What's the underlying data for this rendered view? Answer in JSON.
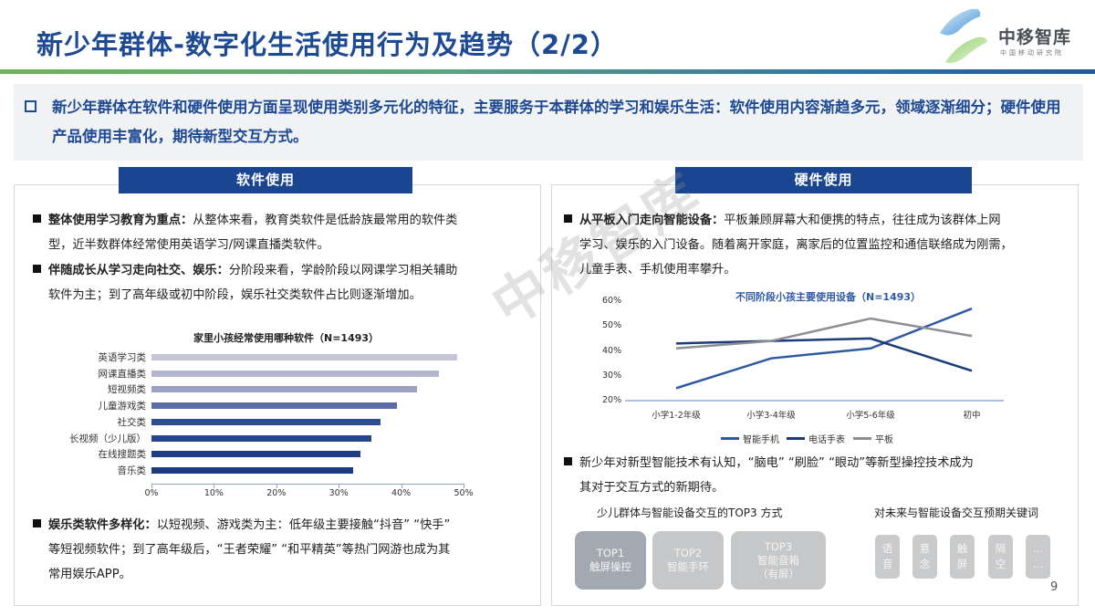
{
  "header": {
    "title": "新少年群体-数字化生活使用行为及趋势（2/2）",
    "logo": {
      "name": "中移智库",
      "subtitle": "中国移动研究院"
    }
  },
  "summary": {
    "text": "新少年群体在软件和硬件使用方面呈现使用类别多元化的特征，主要服务于本群体的学习和娱乐生活：软件使用内容渐趋多元，领域逐渐细分；硬件使用产品使用丰富化，期待新型交互方式。"
  },
  "software": {
    "header": "软件使用",
    "bullets": [
      {
        "bold": "整体使用学习教育为重点：",
        "line1": "从整体来看，教育类软件是低龄族最常用的软件类",
        "line2": "型，近半数群体经常使用英语学习/网课直播类软件。"
      },
      {
        "bold": "伴随成长从学习走向社交、娱乐：",
        "line1": "分阶段来看，学龄阶段以网课学习相关辅助",
        "line2": "软件为主；到了高年级或初中阶段，娱乐社交类软件占比则逐渐增加。"
      },
      {
        "bold": "娱乐类软件多样化：",
        "line1": "以短视频、游戏类为主：低年级主要接触“抖音” “快手”",
        "line2": "等短视频软件；到了高年级后，“王者荣耀” “和平精英”等热门网游也成为其",
        "line3": "常用娱乐APP。"
      }
    ]
  },
  "hardware": {
    "header": "硬件使用",
    "bullets": [
      {
        "bold": "从平板入门走向智能设备：",
        "line1": "平板兼顾屏幕大和便携的特点，往往成为该群体上网",
        "line2": "学习、娱乐的入门设备。随着离开家庭，离家后的位置监控和通信联络成为刚需，",
        "line3": "儿童手表、手机使用率攀升。"
      },
      {
        "bold": "",
        "line1": "新少年对新型智能技术有认知，“脑电” “刷脸” “眼动”等新型操控技术成为",
        "line2": "其对于交互方式的新期待。"
      }
    ],
    "top3_title": "少儿群体与智能设备交互的TOP3 方式",
    "top3": [
      {
        "rank": "TOP1",
        "label": "触屏操控",
        "extra": ""
      },
      {
        "rank": "TOP2",
        "label": "智能手环",
        "extra": ""
      },
      {
        "rank": "TOP3",
        "label": "智能音箱",
        "extra": "（有屏）"
      }
    ],
    "keywords_title": "对未来与智能设备交互预期关键词",
    "keywords": [
      {
        "top": "语",
        "bottom": "音"
      },
      {
        "top": "意",
        "bottom": "念"
      },
      {
        "top": "触",
        "bottom": "屏"
      },
      {
        "top": "隔",
        "bottom": "空"
      },
      {
        "top": "...",
        "bottom": "..."
      }
    ]
  },
  "page_number": "9",
  "watermark": "中移智库",
  "colors": {
    "title_blue": "#1e4a94",
    "header_blue": "#1a4590",
    "bar_colors": [
      "#c4c6d8",
      "#b3b6cf",
      "#9ba1c2",
      "#5b6ba5",
      "#2c4f93",
      "#25468c",
      "#1d3d84",
      "#1b3a80"
    ],
    "smartphone": "#2f5aa2",
    "phone_watch": "#1b3a78",
    "tablet": "#8c8e94"
  },
  "chart_data": [
    {
      "type": "bar",
      "orientation": "horizontal",
      "title": "家里小孩经常使用哪种软件（N=1493）",
      "categories": [
        "英语学习类",
        "网课直播类",
        "短视频类",
        "儿童游戏类",
        "社交类",
        "长视频（少儿版）",
        "在线搜题类",
        "音乐类"
      ],
      "values": [
        49.0,
        46.0,
        42.5,
        39.3,
        36.7,
        35.3,
        33.5,
        32.3
      ],
      "unit": "%",
      "xlim": [
        0,
        50
      ],
      "x_ticks": [
        "0%",
        "10%",
        "20%",
        "30%",
        "40%",
        "50%"
      ],
      "grid": false,
      "legend": false
    },
    {
      "type": "line",
      "title": "不同阶段小孩主要使用设备（N=1493）",
      "categories": [
        "小学1-2年级",
        "小学3-4年级",
        "小学5-6年级",
        "初中"
      ],
      "series": [
        {
          "name": "智能手机",
          "values": [
            25,
            37,
            41,
            57
          ]
        },
        {
          "name": "电话手表",
          "values": [
            43,
            44,
            45,
            32
          ]
        },
        {
          "name": "平板",
          "values": [
            41,
            44,
            53,
            46
          ]
        }
      ],
      "unit": "%",
      "ylim": [
        20,
        60
      ],
      "y_ticks": [
        "20%",
        "30%",
        "40%",
        "50%",
        "60%"
      ],
      "grid": false,
      "legend_position": "bottom"
    }
  ]
}
